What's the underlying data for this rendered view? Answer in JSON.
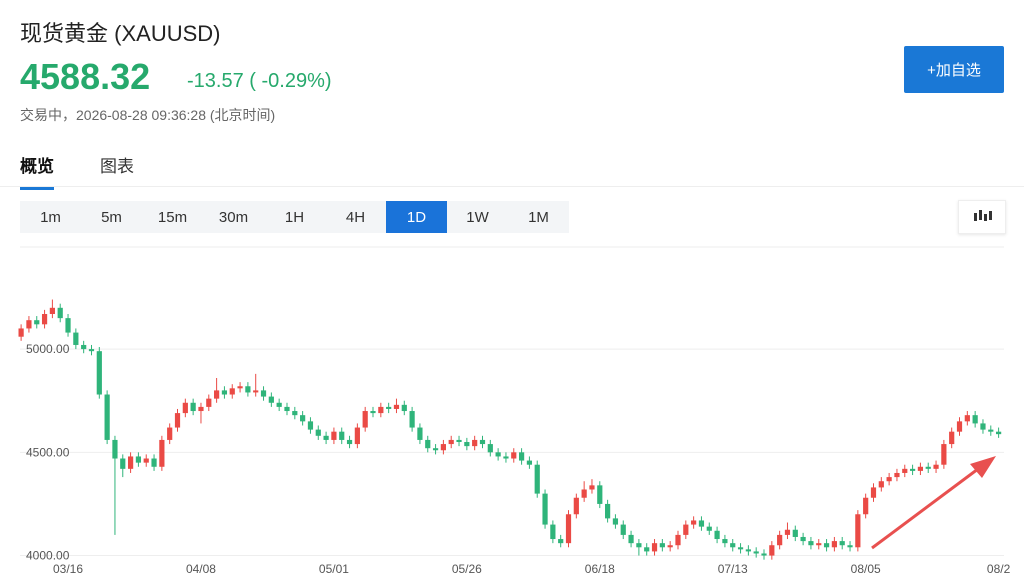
{
  "header": {
    "title": "现货黄金",
    "symbol": "(XAUUSD)",
    "price": "4588.32",
    "change": "-13.57 ( -0.29%)",
    "status": "交易中，2026-08-28 09:36:28 (北京时间)",
    "button": "+加自选"
  },
  "tabs": {
    "items": [
      "概览",
      "图表"
    ],
    "selected": 0
  },
  "intervals": {
    "items": [
      "1m",
      "5m",
      "15m",
      "30m",
      "1H",
      "4H",
      "1D",
      "1W",
      "1M"
    ],
    "selected": 6
  },
  "chart_data": {
    "type": "candlestick",
    "up_color": "#ea4a45",
    "down_color": "#2fb47a",
    "categories": [
      null,
      null,
      null,
      null,
      null,
      null,
      "03/16",
      null,
      null,
      null,
      null,
      null,
      null,
      null,
      null,
      null,
      null,
      null,
      null,
      null,
      null,
      null,
      null,
      "04/08",
      null,
      null,
      null,
      null,
      null,
      null,
      null,
      null,
      null,
      null,
      null,
      null,
      null,
      null,
      null,
      null,
      "05/01",
      null,
      null,
      null,
      null,
      null,
      null,
      null,
      null,
      null,
      null,
      null,
      null,
      null,
      null,
      null,
      null,
      "05/26",
      null,
      null,
      null,
      null,
      null,
      null,
      null,
      null,
      null,
      null,
      null,
      null,
      null,
      null,
      null,
      null,
      "06/18",
      null,
      null,
      null,
      null,
      null,
      null,
      null,
      null,
      null,
      null,
      null,
      null,
      null,
      null,
      null,
      null,
      "07/13",
      null,
      null,
      null,
      null,
      null,
      null,
      null,
      null,
      null,
      null,
      null,
      null,
      null,
      null,
      null,
      null,
      "08/05",
      null,
      null,
      null,
      null,
      null,
      null,
      null,
      null,
      null,
      null,
      null,
      null,
      null,
      null,
      null,
      null,
      "08/2"
    ],
    "open": [
      5060,
      5100,
      5140,
      5120,
      5170,
      5200,
      5150,
      5080,
      5020,
      5000,
      4990,
      4780,
      4560,
      4470,
      4420,
      4480,
      4450,
      4470,
      4430,
      4560,
      4620,
      4690,
      4740,
      4700,
      4720,
      4760,
      4800,
      4780,
      4810,
      4820,
      4790,
      4800,
      4770,
      4740,
      4720,
      4700,
      4680,
      4650,
      4610,
      4580,
      4560,
      4600,
      4560,
      4540,
      4620,
      4700,
      4690,
      4720,
      4710,
      4730,
      4700,
      4620,
      4560,
      4520,
      4510,
      4540,
      4560,
      4550,
      4530,
      4560,
      4540,
      4500,
      4480,
      4470,
      4500,
      4460,
      4440,
      4300,
      4150,
      4080,
      4060,
      4200,
      4280,
      4320,
      4340,
      4250,
      4180,
      4150,
      4100,
      4060,
      4040,
      4020,
      4060,
      4040,
      4050,
      4100,
      4150,
      4170,
      4140,
      4120,
      4080,
      4060,
      4040,
      4030,
      4020,
      4010,
      4000,
      4050,
      4100,
      4125,
      4090,
      4070,
      4050,
      4060,
      4040,
      4070,
      4050,
      4040,
      4200,
      4280,
      4330,
      4360,
      4380,
      4400,
      4420,
      4410,
      4430,
      4420,
      4440,
      4540,
      4600,
      4650,
      4680,
      4640,
      4610,
      4600
    ],
    "high": [
      5120,
      5160,
      5160,
      5190,
      5240,
      5220,
      5170,
      5100,
      5040,
      5020,
      5010,
      4800,
      4580,
      4490,
      4500,
      4500,
      4490,
      4490,
      4580,
      4640,
      4710,
      4760,
      4760,
      4740,
      4780,
      4860,
      4820,
      4830,
      4840,
      4840,
      4880,
      4820,
      4790,
      4760,
      4740,
      4720,
      4700,
      4670,
      4630,
      4600,
      4620,
      4620,
      4580,
      4640,
      4720,
      4720,
      4740,
      4740,
      4760,
      4750,
      4720,
      4640,
      4580,
      4540,
      4560,
      4580,
      4580,
      4570,
      4580,
      4580,
      4560,
      4520,
      4500,
      4520,
      4520,
      4480,
      4460,
      4320,
      4170,
      4100,
      4220,
      4300,
      4360,
      4370,
      4360,
      4270,
      4200,
      4170,
      4120,
      4080,
      4060,
      4080,
      4080,
      4070,
      4120,
      4170,
      4190,
      4190,
      4160,
      4140,
      4100,
      4080,
      4060,
      4050,
      4040,
      4030,
      4070,
      4120,
      4160,
      4145,
      4110,
      4090,
      4080,
      4080,
      4090,
      4090,
      4070,
      4220,
      4300,
      4350,
      4380,
      4400,
      4420,
      4440,
      4440,
      4450,
      4450,
      4460,
      4560,
      4620,
      4670,
      4700,
      4700,
      4660,
      4630,
      4620
    ],
    "low": [
      5040,
      5080,
      5100,
      5100,
      5150,
      5130,
      5060,
      5000,
      4980,
      4970,
      4760,
      4540,
      4100,
      4380,
      4400,
      4430,
      4430,
      4410,
      4410,
      4540,
      4600,
      4670,
      4680,
      4640,
      4700,
      4740,
      4760,
      4760,
      4790,
      4770,
      4770,
      4750,
      4720,
      4700,
      4680,
      4660,
      4630,
      4590,
      4560,
      4540,
      4540,
      4540,
      4520,
      4520,
      4600,
      4670,
      4670,
      4690,
      4690,
      4680,
      4600,
      4540,
      4500,
      4490,
      4490,
      4520,
      4530,
      4510,
      4510,
      4520,
      4480,
      4460,
      4450,
      4450,
      4440,
      4420,
      4280,
      4130,
      4060,
      4040,
      4040,
      4180,
      4260,
      4300,
      4230,
      4160,
      4130,
      4080,
      4040,
      4000,
      4000,
      4000,
      4020,
      4020,
      4030,
      4080,
      4130,
      4120,
      4100,
      4060,
      4040,
      4020,
      4010,
      4000,
      3990,
      3980,
      3980,
      4030,
      4080,
      4070,
      4050,
      4030,
      4030,
      4020,
      4020,
      4030,
      4020,
      4020,
      4180,
      4260,
      4310,
      4340,
      4360,
      4380,
      4390,
      4390,
      4400,
      4400,
      4420,
      4520,
      4580,
      4630,
      4620,
      4590,
      4580,
      4570
    ],
    "close": [
      5100,
      5140,
      5120,
      5170,
      5200,
      5150,
      5080,
      5020,
      5000,
      4990,
      4780,
      4560,
      4470,
      4420,
      4480,
      4450,
      4470,
      4430,
      4560,
      4620,
      4690,
      4740,
      4700,
      4720,
      4760,
      4800,
      4780,
      4810,
      4820,
      4790,
      4800,
      4770,
      4740,
      4720,
      4700,
      4680,
      4650,
      4610,
      4580,
      4560,
      4600,
      4560,
      4540,
      4620,
      4700,
      4690,
      4720,
      4710,
      4730,
      4700,
      4620,
      4560,
      4520,
      4510,
      4540,
      4560,
      4550,
      4530,
      4560,
      4540,
      4500,
      4480,
      4470,
      4500,
      4460,
      4440,
      4300,
      4150,
      4080,
      4060,
      4200,
      4280,
      4320,
      4340,
      4250,
      4180,
      4150,
      4100,
      4060,
      4040,
      4020,
      4060,
      4040,
      4050,
      4100,
      4150,
      4170,
      4140,
      4120,
      4080,
      4060,
      4040,
      4030,
      4020,
      4010,
      4000,
      4050,
      4100,
      4125,
      4090,
      4070,
      4050,
      4060,
      4040,
      4070,
      4050,
      4040,
      4200,
      4280,
      4330,
      4360,
      4380,
      4400,
      4420,
      4410,
      4430,
      4420,
      4440,
      4540,
      4600,
      4650,
      4680,
      4640,
      4610,
      4600,
      4588
    ],
    "ylim": [
      3930,
      5480
    ],
    "yticks": [
      {
        "value": 4000,
        "label": "4000.00"
      },
      {
        "value": 4500,
        "label": "4500.00"
      },
      {
        "value": 5000,
        "label": "5000.00"
      }
    ],
    "grid": true
  }
}
